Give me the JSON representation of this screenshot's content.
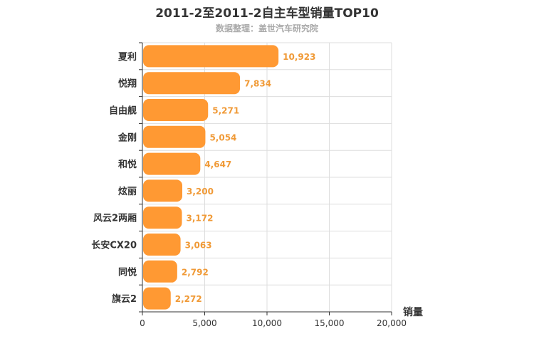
{
  "chart_data": {
    "type": "bar",
    "orientation": "horizontal",
    "title": "2011-2至2011-2自主车型销量TOP10",
    "subtitle": "数据整理：盖世汽车研究院",
    "categories": [
      "夏利",
      "悦翔",
      "自由舰",
      "金刚",
      "和悦",
      "炫丽",
      "风云2两厢",
      "长安CX20",
      "同悦",
      "旗云2"
    ],
    "values": [
      10923,
      7834,
      5271,
      5054,
      4647,
      3200,
      3172,
      3063,
      2792,
      2272
    ],
    "value_labels": [
      "10,923",
      "7,834",
      "5,271",
      "5,054",
      "4,647",
      "3,200",
      "3,172",
      "3,063",
      "2,792",
      "2,272"
    ],
    "xlabel": "销量",
    "xlim": [
      0,
      20000
    ],
    "xticks": [
      0,
      5000,
      10000,
      15000,
      20000
    ],
    "xtick_labels": [
      "0",
      "5,000",
      "10,000",
      "15,000",
      "20,000"
    ],
    "grid": true,
    "colors": {
      "bar": "#ff9933",
      "data_label": "#f09a37",
      "grid": "#dddddd",
      "axis": "#333333"
    }
  }
}
